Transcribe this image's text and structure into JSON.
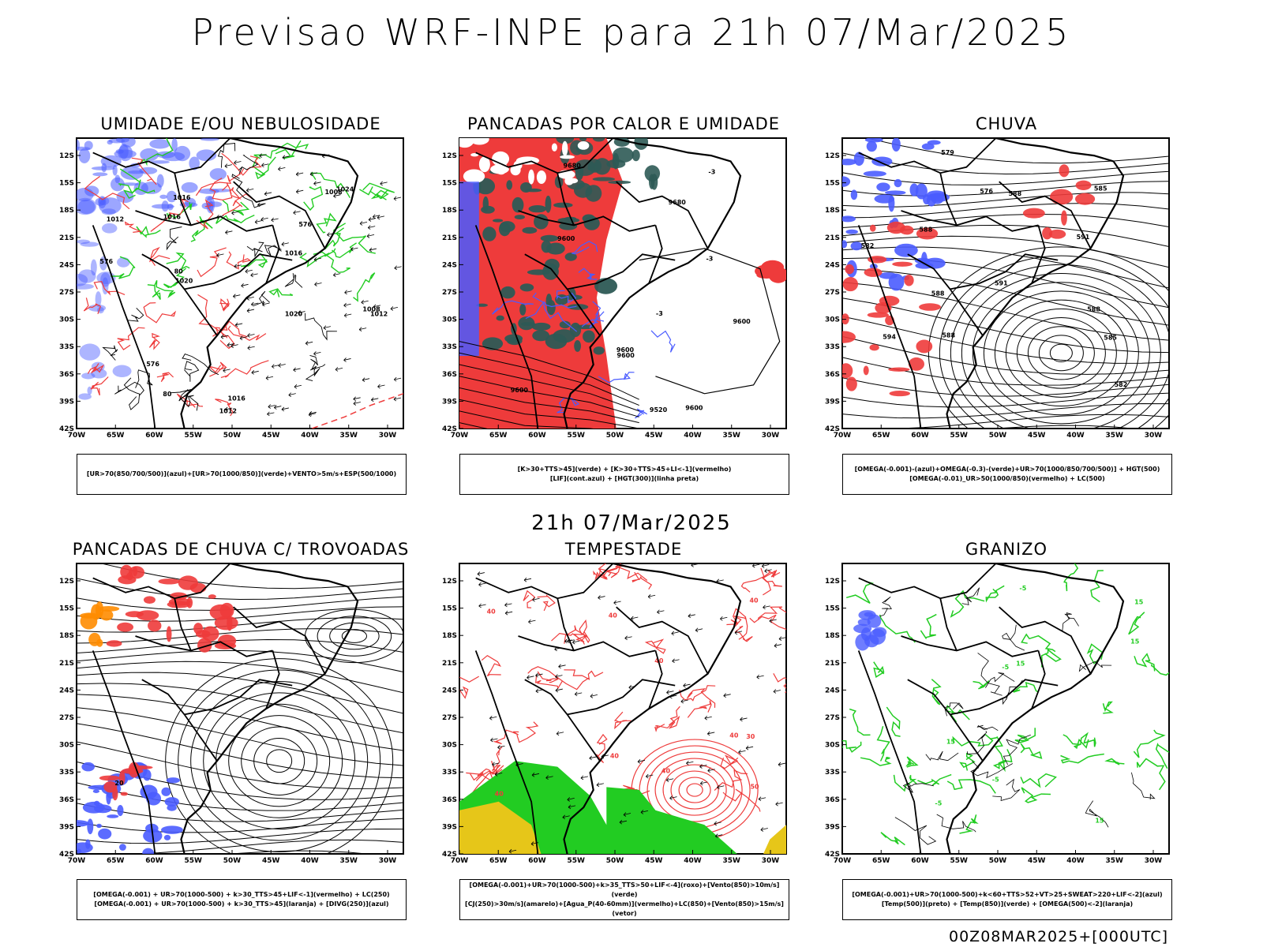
{
  "title": "Previsao WRF-INPE  para 21h 07/Mar/2025",
  "subtitle": "21h 07/Mar/2025",
  "footer": "00Z08MAR2025+[000UTC]",
  "axes": {
    "lat_labels": [
      "12S",
      "15S",
      "18S",
      "21S",
      "24S",
      "27S",
      "30S",
      "33S",
      "36S",
      "39S",
      "42S"
    ],
    "lon_labels": [
      "70W",
      "65W",
      "60W",
      "55W",
      "50W",
      "45W",
      "40W",
      "35W",
      "30W"
    ]
  },
  "colors": {
    "blue": "#4a5cff",
    "green": "#22cc22",
    "red": "#ee3b3b",
    "darkgreen": "#2d5a55",
    "orange": "#ff8c00",
    "yellow": "#e6c619"
  },
  "panels": [
    {
      "title": "UMIDADE E/OU NEBULOSIDADE",
      "legend": [
        "[UR>70(850/700/500)](azul)+[UR>70(1000/850)](verde)+VENTO>5m/s+ESP(500/1000)"
      ],
      "contour_labels": [
        "1012",
        "1016",
        "1016",
        "1016",
        "1008",
        "1012",
        "1020",
        "1020",
        "1024",
        "1012",
        "1008",
        "1016",
        "576",
        "576",
        "576",
        "80",
        "80"
      ]
    },
    {
      "title": "PANCADAS POR CALOR E UMIDADE",
      "legend": [
        "[K>30+TTS>45](verde) + [K>30+TTS>45+LI<-1](vermelho)",
        "[LIF](cont.azul) + [HGT(300)](linha preta)"
      ],
      "contour_labels": [
        "9600",
        "9600",
        "9600",
        "9600",
        "9600",
        "9600",
        "9680",
        "9680",
        "9520",
        "-3",
        "-3",
        "-3"
      ]
    },
    {
      "title": "CHUVA",
      "legend": [
        "[OMEGA(-0.001)-(azul)+OMEGA(-0.3)-(verde)+UR>70(1000/850/700/500)] + HGT(500)",
        "[OMEGA(-0.01)_UR>50(1000/850)(vermelho) + LC(500)"
      ],
      "contour_labels": [
        "585",
        "585",
        "588",
        "588",
        "591",
        "588",
        "594",
        "591",
        "588",
        "582",
        "579",
        "576",
        "582",
        "588"
      ]
    },
    {
      "title": "PANCADAS DE CHUVA C/ TROVOADAS",
      "legend": [
        "[OMEGA(-0.001) + UR>70(1000-500) + k>30_TTS>45+LIF<-1](vermelho) + LC(250)",
        "[OMEGA(-0.001) + UR>70(1000-500) + k>30_TTS>45](laranja) + [DIVG(250)](azul)"
      ],
      "contour_labels": [
        "20"
      ]
    },
    {
      "title": "TEMPESTADE",
      "legend": [
        "[OMEGA(-0.001)+UR>70(1000-500)+k>35_TTS>50+LIF<-4](roxo)+[Vento(850)>10m/s](verde)",
        "[CJ(250)>30m/s](amarelo)+[Agua_P(40-60mm)](vermelho)+LC(850)+[Vento(850)>15m/s](vetor)"
      ],
      "contour_labels": [
        "40",
        "40",
        "40",
        "40",
        "40",
        "40",
        "40",
        "40",
        "50",
        "30"
      ]
    },
    {
      "title": "GRANIZO",
      "legend": [
        "[OMEGA(-0.001)+UR>70(1000-500)+k<60+TTS>52+VT>25+SWEAT>220+LIF<-2](azul)",
        "[Temp(500)](preto) + [Temp(850)](verde) + [OMEGA(500)<-2](laranja)"
      ],
      "contour_labels": [
        "-5",
        "-5",
        "15",
        "15",
        "15",
        "15",
        "-5",
        "-5",
        "15"
      ]
    }
  ]
}
